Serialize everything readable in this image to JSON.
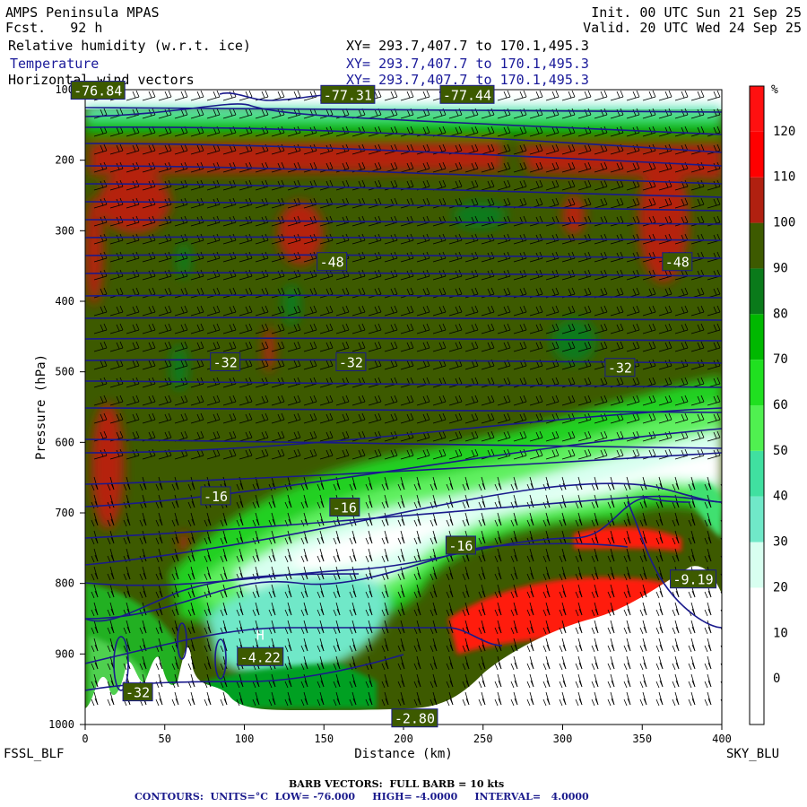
{
  "header": {
    "model": "AMPS Peninsula MPAS",
    "fcst_label": "Fcst.",
    "fcst_value": "92 h",
    "init": "Init. 00 UTC Sun 21 Sep 25",
    "valid": "Valid. 20 UTC Wed 24 Sep 25",
    "fields": [
      {
        "name": "Relative humidity (w.r.t. ice)",
        "xy": "XY= 293.7,407.7 to 170.1,495.3"
      },
      {
        "name": "Temperature",
        "xy": "XY= 293.7,407.7 to 170.1,495.3"
      },
      {
        "name": "Horizontal wind vectors",
        "xy": "XY= 293.7,407.7 to 170.1,495.3"
      }
    ]
  },
  "chart_data": {
    "type": "heatmap",
    "title": "",
    "xlabel": "Distance (km)",
    "ylabel": "Pressure (hPa)",
    "x_ticks": [
      0,
      50,
      100,
      150,
      200,
      250,
      300,
      350,
      400
    ],
    "y_ticks": [
      100,
      200,
      300,
      400,
      500,
      600,
      700,
      800,
      900,
      1000
    ],
    "xlim": [
      0,
      400
    ],
    "ylim": [
      100,
      1000
    ],
    "left_end_label": "FSSL_BLF",
    "right_end_label": "SKY_BLU",
    "colorbar": {
      "unit": "%",
      "levels": [
        0,
        10,
        20,
        30,
        40,
        50,
        60,
        70,
        80,
        90,
        100,
        110,
        120
      ],
      "colors": [
        "#ffffff",
        "#ffffff",
        "#ffffff",
        "#d8fff0",
        "#70e8c8",
        "#40e0a0",
        "#50f050",
        "#20e020",
        "#00b800",
        "#0a7a1a",
        "#3d5a00",
        "#b02010",
        "#ff0000",
        "#ff1010"
      ]
    },
    "contour_labels": [
      {
        "text": "-48",
        "x": 155,
        "p": 345
      },
      {
        "text": "-48",
        "x": 372,
        "p": 345
      },
      {
        "text": "-32",
        "x": 88,
        "p": 487
      },
      {
        "text": "-32",
        "x": 167,
        "p": 487
      },
      {
        "text": "-32",
        "x": 336,
        "p": 495
      },
      {
        "text": "-16",
        "x": 82,
        "p": 677
      },
      {
        "text": "-16",
        "x": 163,
        "p": 693
      },
      {
        "text": "-16",
        "x": 236,
        "p": 747
      },
      {
        "text": "-77.31",
        "x": 165,
        "p": 108
      },
      {
        "text": "-77.44",
        "x": 240,
        "p": 108
      },
      {
        "text": "-76.84",
        "x": 8,
        "p": 102
      },
      {
        "text": "-4.22",
        "x": 110,
        "p": 905
      },
      {
        "text": "-2.80",
        "x": 207,
        "p": 992
      },
      {
        "text": "-9.19",
        "x": 382,
        "p": 795
      },
      {
        "text": "-32",
        "x": 33,
        "p": 955
      }
    ],
    "extrema": [
      {
        "text": "H",
        "x": 110,
        "p": 880
      }
    ],
    "barb_note": "BARB VECTORS:  FULL BARB = 10 kts",
    "contours_note": {
      "units_label": "CONTOURS:  UNITS=°C",
      "low_label": "LOW=",
      "low": "-76.000",
      "high_label": "HIGH=",
      "high": "-4.0000",
      "interval_label": "INTERVAL=",
      "interval": "4.0000"
    }
  }
}
